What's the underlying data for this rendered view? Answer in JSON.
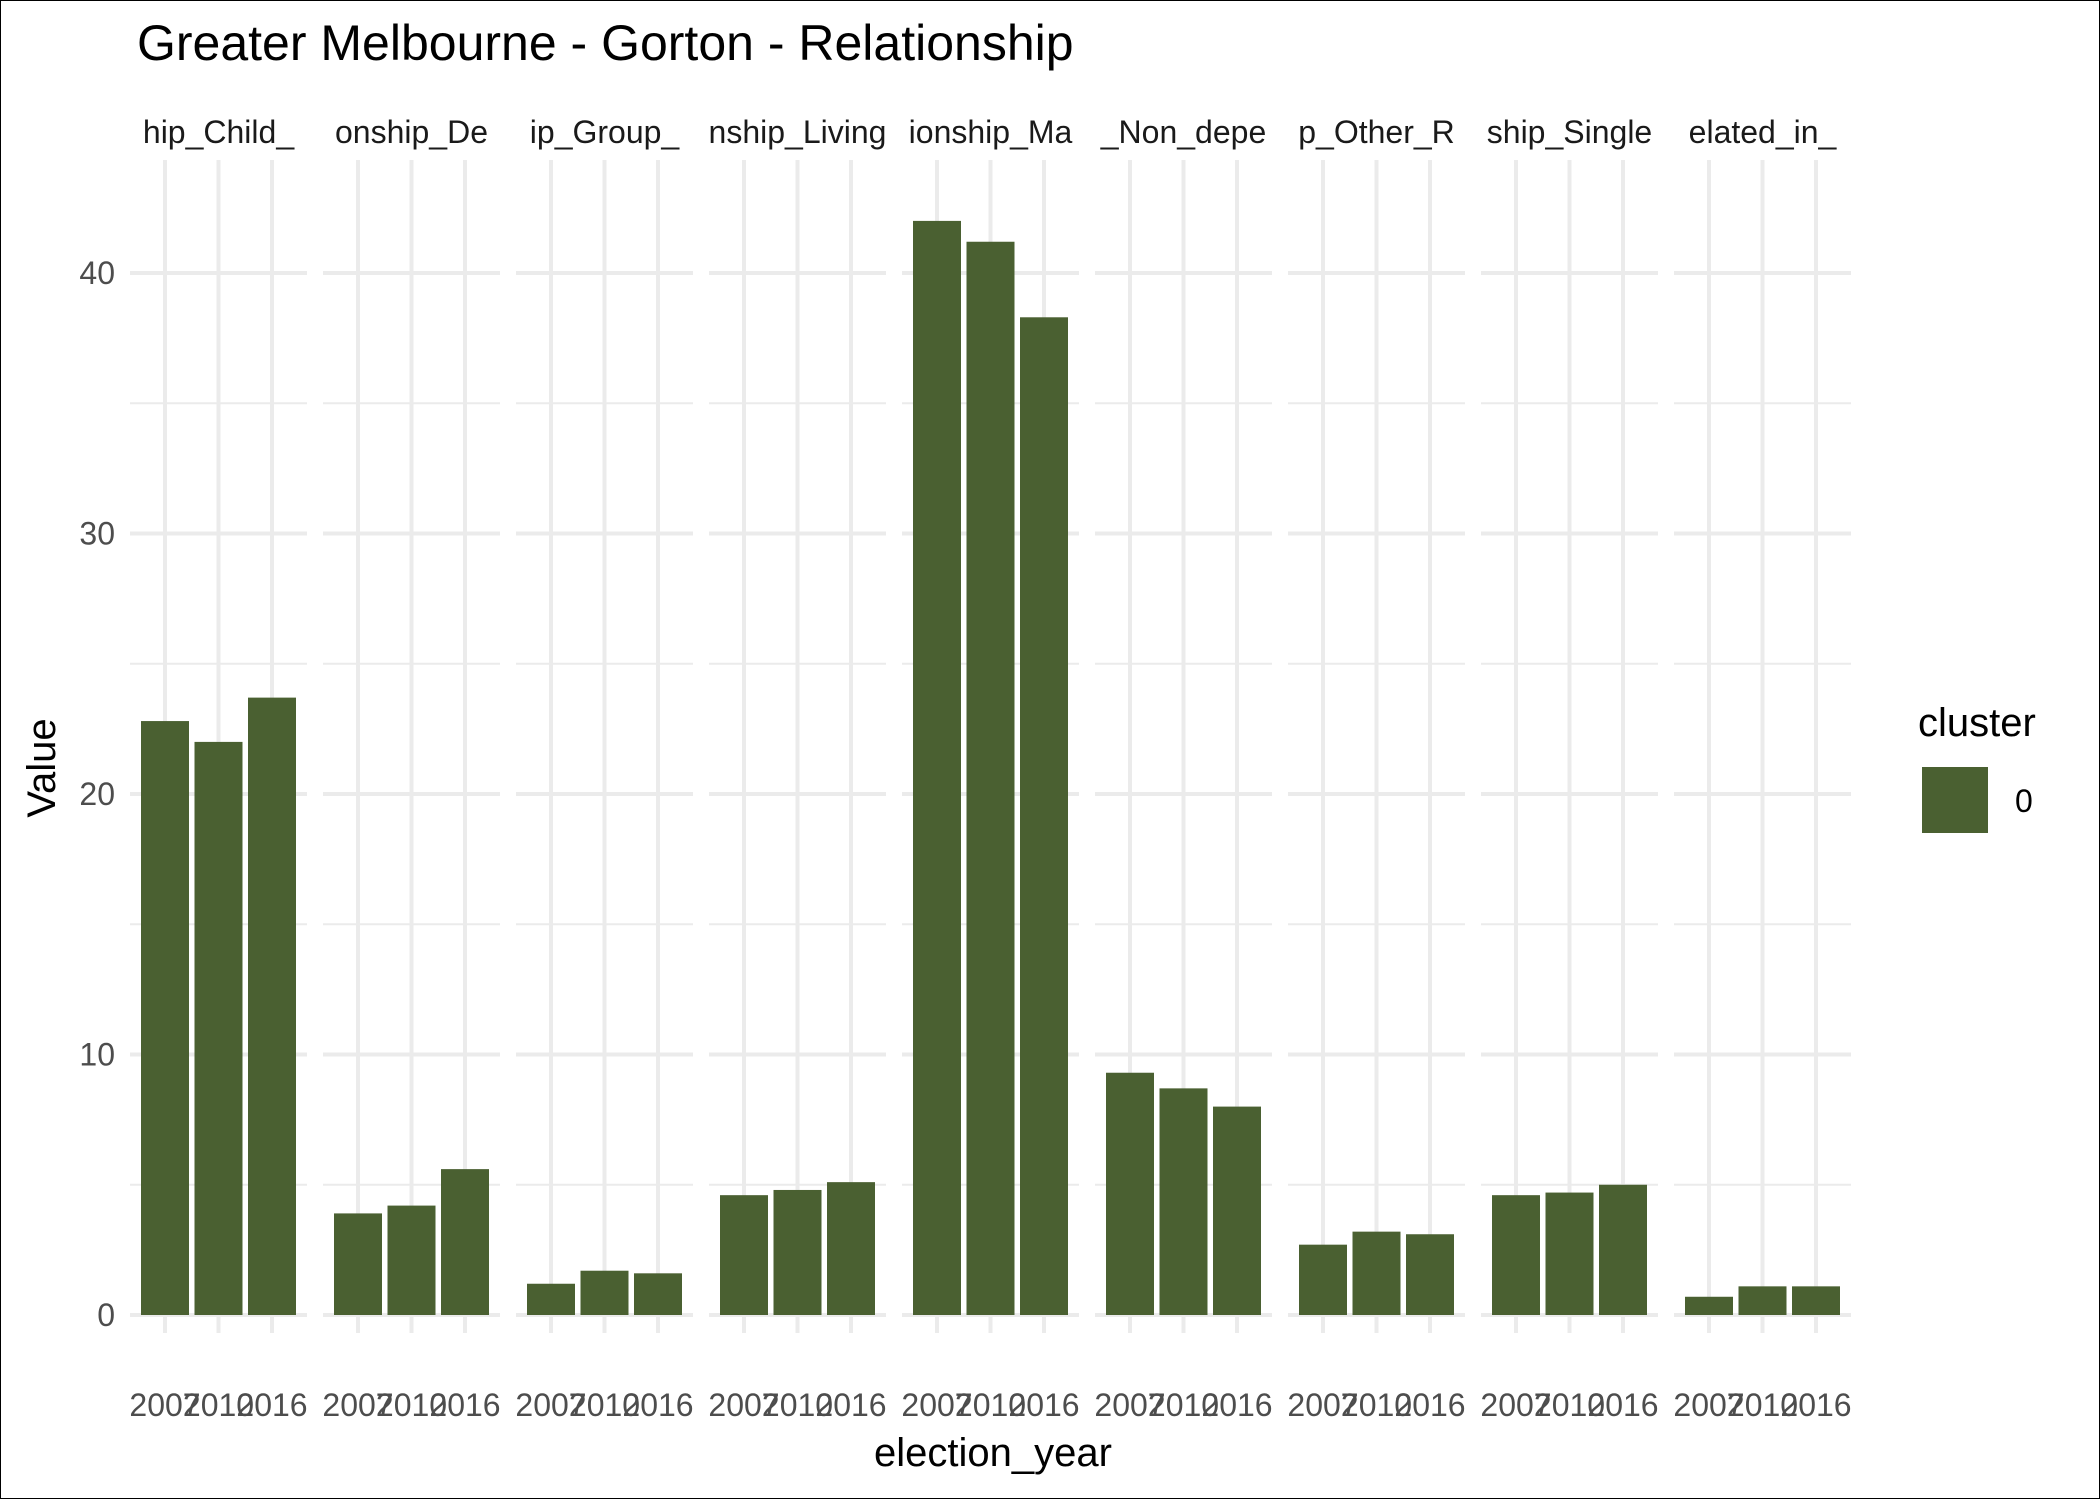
{
  "chart_data": {
    "type": "bar",
    "title": "Greater Melbourne - Gorton - Relationship",
    "xlabel": "election_year",
    "ylabel": "Value",
    "ylim": [
      0,
      44
    ],
    "yticks": [
      0,
      10,
      20,
      30,
      40
    ],
    "grid": true,
    "legend": {
      "title": "cluster",
      "placement": "right",
      "entries": [
        {
          "label": "0",
          "color": "#4a6031"
        }
      ]
    },
    "bar_color": "#4a6031",
    "x": [
      "2007",
      "2010",
      "2016"
    ],
    "facets": [
      {
        "strip": "hip_Child_",
        "values": [
          22.8,
          22.0,
          23.7
        ]
      },
      {
        "strip": "onship_De",
        "values": [
          3.9,
          4.2,
          5.6
        ]
      },
      {
        "strip": "ip_Group_",
        "values": [
          1.2,
          1.7,
          1.6
        ]
      },
      {
        "strip": "nship_Living",
        "values": [
          4.6,
          4.8,
          5.1
        ]
      },
      {
        "strip": "ionship_Ma",
        "values": [
          42.0,
          41.2,
          38.3
        ]
      },
      {
        "strip": "_Non_depe",
        "values": [
          9.3,
          8.7,
          8.0
        ]
      },
      {
        "strip": "p_Other_R",
        "values": [
          2.7,
          3.2,
          3.1
        ]
      },
      {
        "strip": "ship_Single",
        "values": [
          4.6,
          4.7,
          5.0
        ]
      },
      {
        "strip": "elated_in_",
        "values": [
          0.7,
          1.1,
          1.1
        ]
      }
    ]
  }
}
